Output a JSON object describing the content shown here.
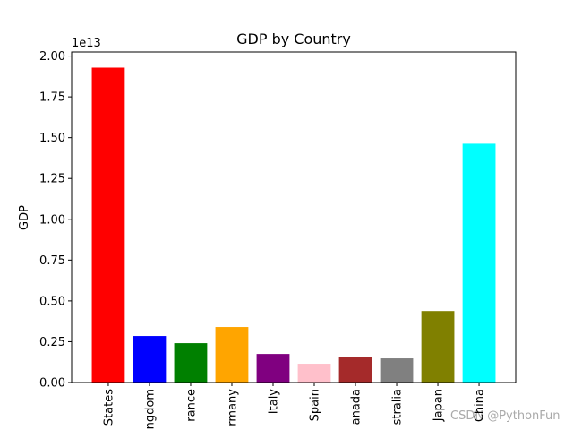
{
  "chart_data": {
    "type": "bar",
    "title": "GDP by Country",
    "y_label": "GDP",
    "y_offset_label": "1e13",
    "categories": [
      "States",
      "ngdom",
      "rance",
      "rmany",
      "Italy",
      "Spain",
      "anada",
      "stralia",
      "Japan",
      "China"
    ],
    "values": [
      19290000000000,
      2850000000000,
      2410000000000,
      3400000000000,
      1750000000000,
      1150000000000,
      1590000000000,
      1480000000000,
      4380000000000,
      14630000000000
    ],
    "colors": [
      "red",
      "blue",
      "green",
      "orange",
      "purple",
      "pink",
      "brown",
      "gray",
      "olive",
      "cyan"
    ],
    "ylim": [
      0,
      20250000000000
    ],
    "yticks": [
      {
        "value": 0,
        "label": "0.00"
      },
      {
        "value": 2500000000000,
        "label": "0.25"
      },
      {
        "value": 5000000000000,
        "label": "0.50"
      },
      {
        "value": 7500000000000,
        "label": "0.75"
      },
      {
        "value": 10000000000000,
        "label": "1.00"
      },
      {
        "value": 12500000000000,
        "label": "1.25"
      },
      {
        "value": 15000000000000,
        "label": "1.50"
      },
      {
        "value": 17500000000000,
        "label": "1.75"
      },
      {
        "value": 20000000000000,
        "label": "2.00"
      }
    ],
    "watermark": "CSDN @PythonFun"
  }
}
